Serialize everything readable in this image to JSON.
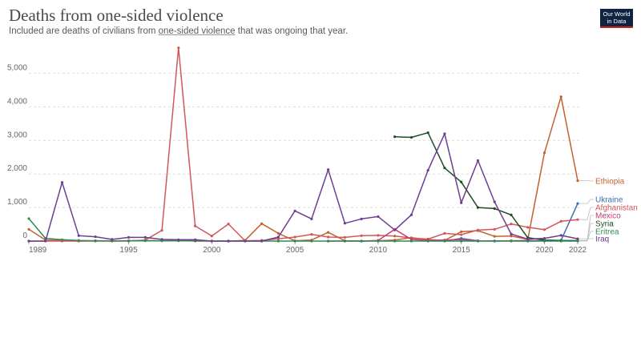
{
  "header": {
    "title": "Deaths from one-sided violence",
    "subtitle_before": "Included are deaths of civilians from ",
    "subtitle_link": "one-sided violence",
    "subtitle_after": " that was ongoing that year.",
    "logo_line1": "Our World",
    "logo_line2": "in Data"
  },
  "colors": {
    "Ethiopia": "#c4612e",
    "Ukraine": "#3a6fb0",
    "Afghanistan": "#d0575a",
    "Mexico": "#c93a73",
    "Syria": "#1f4d23",
    "Eritrea": "#2f8a55",
    "Iraq": "#6d3e91"
  },
  "chart_data": {
    "type": "line",
    "title": "Deaths from one-sided violence",
    "xlim": [
      1989,
      2022
    ],
    "ylim": [
      0,
      5800
    ],
    "y_ticks": [
      0,
      1000,
      2000,
      3000,
      4000,
      5000
    ],
    "y_tick_labels": [
      "0",
      "1,000",
      "2,000",
      "3,000",
      "4,000",
      "5,000"
    ],
    "x_ticks": [
      1989,
      1995,
      2000,
      2005,
      2010,
      2015,
      2020,
      2022
    ],
    "x_tick_labels": [
      "1989",
      "1995",
      "2000",
      "2005",
      "2010",
      "2015",
      "2020",
      "2022"
    ],
    "series": [
      {
        "name": "Ethiopia",
        "x": [
          1989,
          1990,
          1991,
          1992,
          1993,
          1994,
          1995,
          1996,
          1997,
          1998,
          1999,
          2000,
          2001,
          2002,
          2003,
          2004,
          2005,
          2006,
          2007,
          2008,
          2009,
          2010,
          2011,
          2012,
          2013,
          2014,
          2015,
          2016,
          2017,
          2018,
          2019,
          2020,
          2021,
          2022
        ],
        "y": [
          350,
          30,
          20,
          0,
          10,
          0,
          10,
          20,
          10,
          20,
          0,
          0,
          0,
          20,
          520,
          230,
          10,
          30,
          260,
          10,
          0,
          10,
          30,
          100,
          40,
          20,
          280,
          310,
          140,
          150,
          50,
          2630,
          4300,
          1800
        ]
      },
      {
        "name": "Ukraine",
        "x": [
          2014,
          2015,
          2016,
          2017,
          2018,
          2019,
          2020,
          2021,
          2022
        ],
        "y": [
          0,
          80,
          10,
          5,
          5,
          0,
          10,
          20,
          1120
        ]
      },
      {
        "name": "Afghanistan",
        "x": [
          1989,
          1990,
          1991,
          1992,
          1993,
          1994,
          1995,
          1996,
          1997,
          1998,
          1999,
          2000,
          2001,
          2002,
          2003,
          2004,
          2005,
          2006,
          2007,
          2008,
          2009,
          2010,
          2011,
          2012,
          2013,
          2014,
          2015,
          2016,
          2017,
          2018,
          2019,
          2020,
          2021,
          2022
        ],
        "y": [
          0,
          0,
          0,
          0,
          0,
          0,
          0,
          30,
          320,
          5760,
          450,
          150,
          510,
          10,
          20,
          70,
          120,
          200,
          120,
          110,
          160,
          170,
          150,
          90,
          60,
          230,
          190,
          330,
          350,
          510,
          410,
          340,
          590,
          640
        ]
      },
      {
        "name": "Mexico",
        "x": [
          2007,
          2008,
          2009,
          2010,
          2011,
          2012,
          2013,
          2014,
          2015,
          2016,
          2017,
          2018,
          2019,
          2020,
          2021,
          2022
        ],
        "y": [
          0,
          0,
          0,
          20,
          350,
          50,
          20,
          30,
          40,
          10,
          0,
          10,
          20,
          10,
          10,
          20
        ]
      },
      {
        "name": "Syria",
        "x": [
          2011,
          2012,
          2013,
          2014,
          2015,
          2016,
          2017,
          2018,
          2019,
          2020,
          2021,
          2022
        ],
        "y": [
          3110,
          3090,
          3230,
          2180,
          1760,
          1000,
          970,
          780,
          100,
          30,
          20,
          10
        ]
      },
      {
        "name": "Eritrea",
        "x": [
          1989,
          1990,
          1991,
          1992,
          1993,
          1994,
          1995,
          1996,
          1997,
          1998,
          1999,
          2000,
          2001,
          2002,
          2003,
          2004,
          2005,
          2006,
          2007,
          2008,
          2009,
          2010,
          2011,
          2012,
          2013,
          2014,
          2015,
          2016,
          2017,
          2018,
          2019,
          2020,
          2021,
          2022
        ],
        "y": [
          670,
          80,
          40,
          20,
          10,
          10,
          10,
          10,
          10,
          10,
          10,
          0,
          0,
          0,
          0,
          0,
          0,
          0,
          0,
          0,
          0,
          0,
          0,
          0,
          0,
          0,
          0,
          0,
          0,
          0,
          0,
          0,
          0,
          0
        ]
      },
      {
        "name": "Iraq",
        "x": [
          1989,
          1990,
          1991,
          1992,
          1993,
          1994,
          1995,
          1996,
          1997,
          1998,
          1999,
          2000,
          2001,
          2002,
          2003,
          2004,
          2005,
          2006,
          2007,
          2008,
          2009,
          2010,
          2011,
          2012,
          2013,
          2014,
          2015,
          2016,
          2017,
          2018,
          2019,
          2020,
          2021,
          2022
        ],
        "y": [
          0,
          0,
          1750,
          160,
          130,
          50,
          110,
          110,
          50,
          40,
          40,
          0,
          0,
          0,
          0,
          120,
          900,
          660,
          2130,
          530,
          660,
          730,
          330,
          780,
          2110,
          3200,
          1140,
          2400,
          1170,
          210,
          60,
          80,
          170,
          70
        ]
      }
    ],
    "legend_order": [
      "Ethiopia",
      "Ukraine",
      "Afghanistan",
      "Mexico",
      "Syria",
      "Eritrea",
      "Iraq"
    ],
    "legend_placement": "right"
  }
}
